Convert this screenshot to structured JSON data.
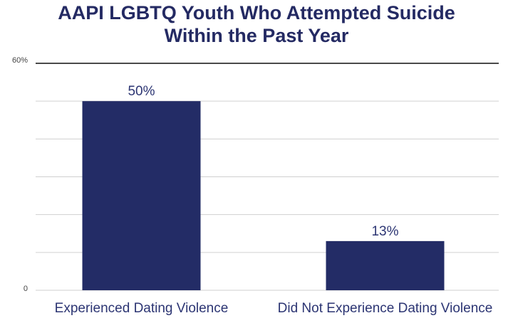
{
  "chart_data": {
    "type": "bar",
    "title": "AAPI LGBTQ Youth Who Attempted Suicide Within the Past Year",
    "title_lines": [
      "AAPI LGBTQ Youth Who Attempted Suicide",
      "Within the Past Year"
    ],
    "categories": [
      "Experienced Dating Violence",
      "Did Not Experience Dating Violence"
    ],
    "values": [
      50,
      13
    ],
    "data_labels": [
      "50%",
      "13%"
    ],
    "ylim": [
      0,
      60
    ],
    "y_tick_labels": [
      "0",
      "60%"
    ],
    "grid": true,
    "xlabel": "",
    "ylabel": "",
    "colors": {
      "bar": "#232c66",
      "title": "#242a63"
    }
  }
}
